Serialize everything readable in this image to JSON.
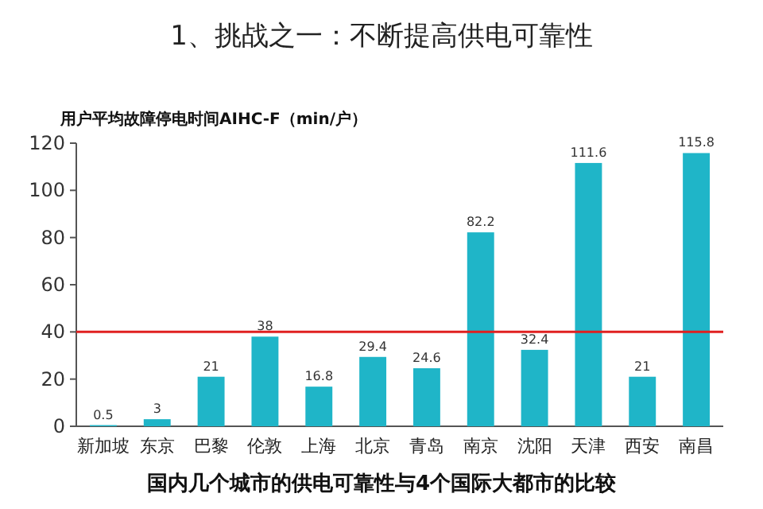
{
  "chart_data": {
    "type": "bar",
    "title": "1、挑战之一：不断提高供电可靠性",
    "ylabel": "用户平均故障停电时间AIHC-F（min/户）",
    "categories": [
      "新加坡",
      "东京",
      "巴黎",
      "伦敦",
      "上海",
      "北京",
      "青岛",
      "南京",
      "沈阳",
      "天津",
      "西安",
      "南昌"
    ],
    "values": [
      0.5,
      3,
      21,
      38,
      16.8,
      29.4,
      24.6,
      82.2,
      32.4,
      111.6,
      21,
      115.8
    ],
    "color": "#1fb5c8",
    "ylim": [
      0,
      120
    ],
    "yticks": [
      0,
      20,
      40,
      60,
      80,
      100,
      120
    ],
    "data_labels": true,
    "ref_lines": [
      {
        "axis": "y",
        "value": 40,
        "color": "#e02020"
      }
    ],
    "annotations": [
      "国内几个城市的供电可靠性与4个国际大都市的比较"
    ]
  }
}
